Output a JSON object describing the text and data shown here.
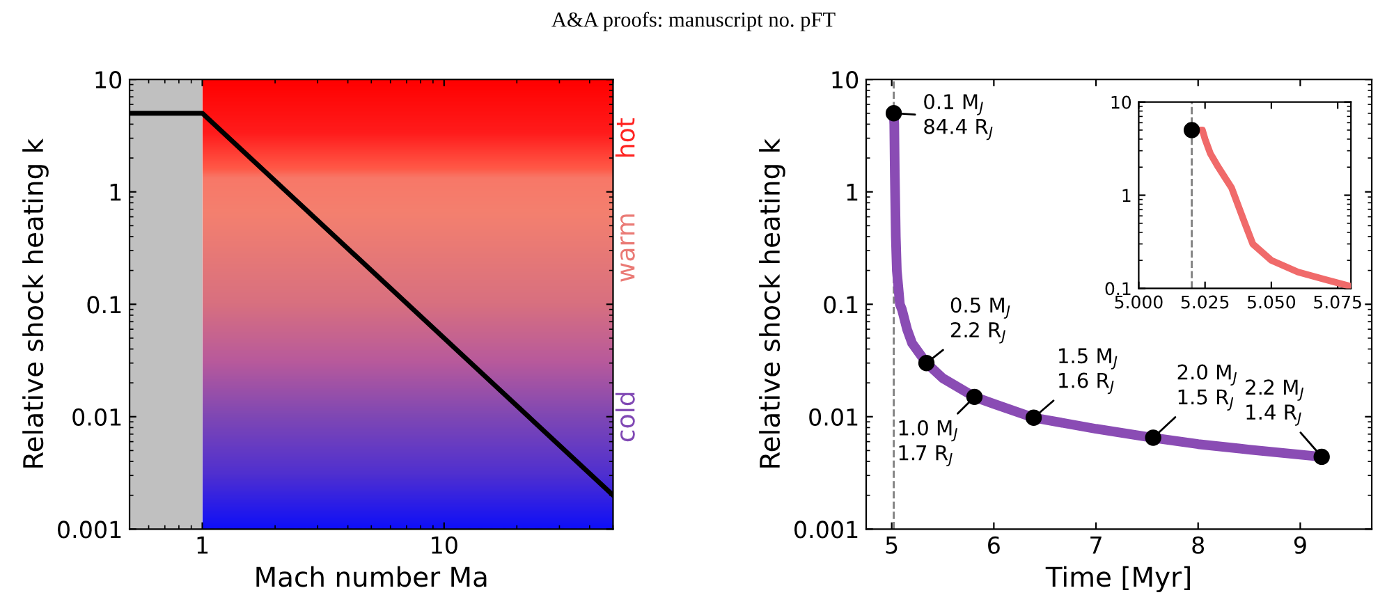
{
  "chart_data": [
    {
      "type": "line",
      "xlabel": "Mach number Ma",
      "ylabel": "Relative shock heating k",
      "log": "xy",
      "xlim": [
        0.5,
        50
      ],
      "xticks": [
        1,
        10
      ],
      "ylim": [
        0.001,
        10
      ],
      "yticks": [
        {
          "value": 0.001,
          "label": "0.001"
        },
        {
          "value": 0.01,
          "label": "0.01"
        },
        {
          "value": 0.1,
          "label": "0.1"
        },
        {
          "value": 1,
          "label": "1"
        },
        {
          "value": 10,
          "label": "10"
        }
      ],
      "grid": false,
      "legend": false,
      "series": [
        {
          "color": "#000000",
          "x": [
            0.5,
            1,
            50
          ],
          "values": [
            5,
            5,
            0.002
          ]
        }
      ],
      "bands": [
        {
          "axis": "x",
          "from": 0.5,
          "to": 1,
          "color": "#c0c0c0"
        },
        {
          "axis": "x",
          "from": 1,
          "to": 50
        }
      ],
      "annotations": [
        "A&A proofs: manuscript no. pFT",
        "hot",
        "warm",
        "cold"
      ]
    },
    {
      "type": "line",
      "xlabel": "Time [Myr]",
      "ylabel": "Relative shock heating k",
      "log": "y",
      "xlim": [
        4.75,
        9.7
      ],
      "xticks": [
        5,
        6,
        7,
        8,
        9
      ],
      "ylim": [
        0.001,
        10
      ],
      "yticks": [
        {
          "value": 0.001,
          "label": "0.001"
        },
        {
          "value": 0.01,
          "label": "0.01"
        },
        {
          "value": 0.1,
          "label": "0.1"
        },
        {
          "value": 1,
          "label": "1"
        },
        {
          "value": 10,
          "label": "10"
        }
      ],
      "grid": false,
      "legend": false,
      "ref_lines": [
        {
          "axis": "x",
          "value": 5.02,
          "color": "#808080",
          "line_style": "dashed"
        }
      ],
      "series": [
        {
          "type": "line",
          "color": "#8a4cb4",
          "x": [
            5.02,
            5.025,
            5.03,
            5.04,
            5.05,
            5.08,
            5.1,
            5.15,
            5.2,
            5.34,
            5.5,
            5.81,
            6.0,
            6.39,
            7.0,
            7.56,
            8.0,
            8.5,
            9.21
          ],
          "values": [
            5,
            4,
            1.5,
            0.4,
            0.2,
            0.1,
            0.09,
            0.06,
            0.045,
            0.03,
            0.022,
            0.015,
            0.013,
            0.0098,
            0.0078,
            0.0065,
            0.0057,
            0.0051,
            0.0044
          ]
        },
        {
          "type": "scatter",
          "color": "#000000",
          "marker": "circle",
          "x": [
            5.02,
            5.34,
            5.81,
            6.39,
            7.56,
            9.21
          ],
          "values": [
            5,
            0.03,
            0.015,
            0.0098,
            0.0065,
            0.0044
          ],
          "value_labels": [
            "0.1 M$_{J}$\n84.4 R$_{J}$",
            "0.5 M$_{J}$\n2.2 R$_{J}$",
            "1.0 M$_{J}$\n1.7 R$_{J}$",
            "1.5 M$_{J}$\n1.6 R$_{J}$",
            "2.0 M$_{J}$\n1.5 R$_{J}$",
            "2.2 M$_{J}$\n1.4 R$_{J}$"
          ]
        }
      ]
    },
    {
      "type": "line",
      "log": "y",
      "xlim": [
        5.0,
        5.08
      ],
      "xticks": [
        {
          "value": 5.0,
          "label": "5.000"
        },
        {
          "value": 5.025,
          "label": "5.025"
        },
        {
          "value": 5.05,
          "label": "5.050"
        },
        {
          "value": 5.075,
          "label": "5.075"
        }
      ],
      "ylim": [
        0.1,
        10
      ],
      "yticks": [
        {
          "value": 0.1,
          "label": "0.1"
        },
        {
          "value": 1,
          "label": "1"
        },
        {
          "value": 10,
          "label": "10"
        }
      ],
      "grid": false,
      "legend": false,
      "ref_lines": [
        {
          "axis": "x",
          "value": 5.02,
          "color": "#808080",
          "line_style": "dashed"
        }
      ],
      "series": [
        {
          "type": "line",
          "color": "#f06a6a",
          "x": [
            5.02,
            5.024,
            5.025,
            5.027,
            5.03,
            5.035,
            5.04,
            5.043,
            5.05,
            5.06,
            5.07,
            5.08
          ],
          "values": [
            5,
            5,
            4,
            2.8,
            2.0,
            1.2,
            0.5,
            0.3,
            0.2,
            0.15,
            0.125,
            0.105
          ]
        },
        {
          "type": "scatter",
          "color": "#000000",
          "marker": "circle",
          "x": [
            5.02
          ],
          "values": [
            5
          ]
        }
      ]
    }
  ]
}
